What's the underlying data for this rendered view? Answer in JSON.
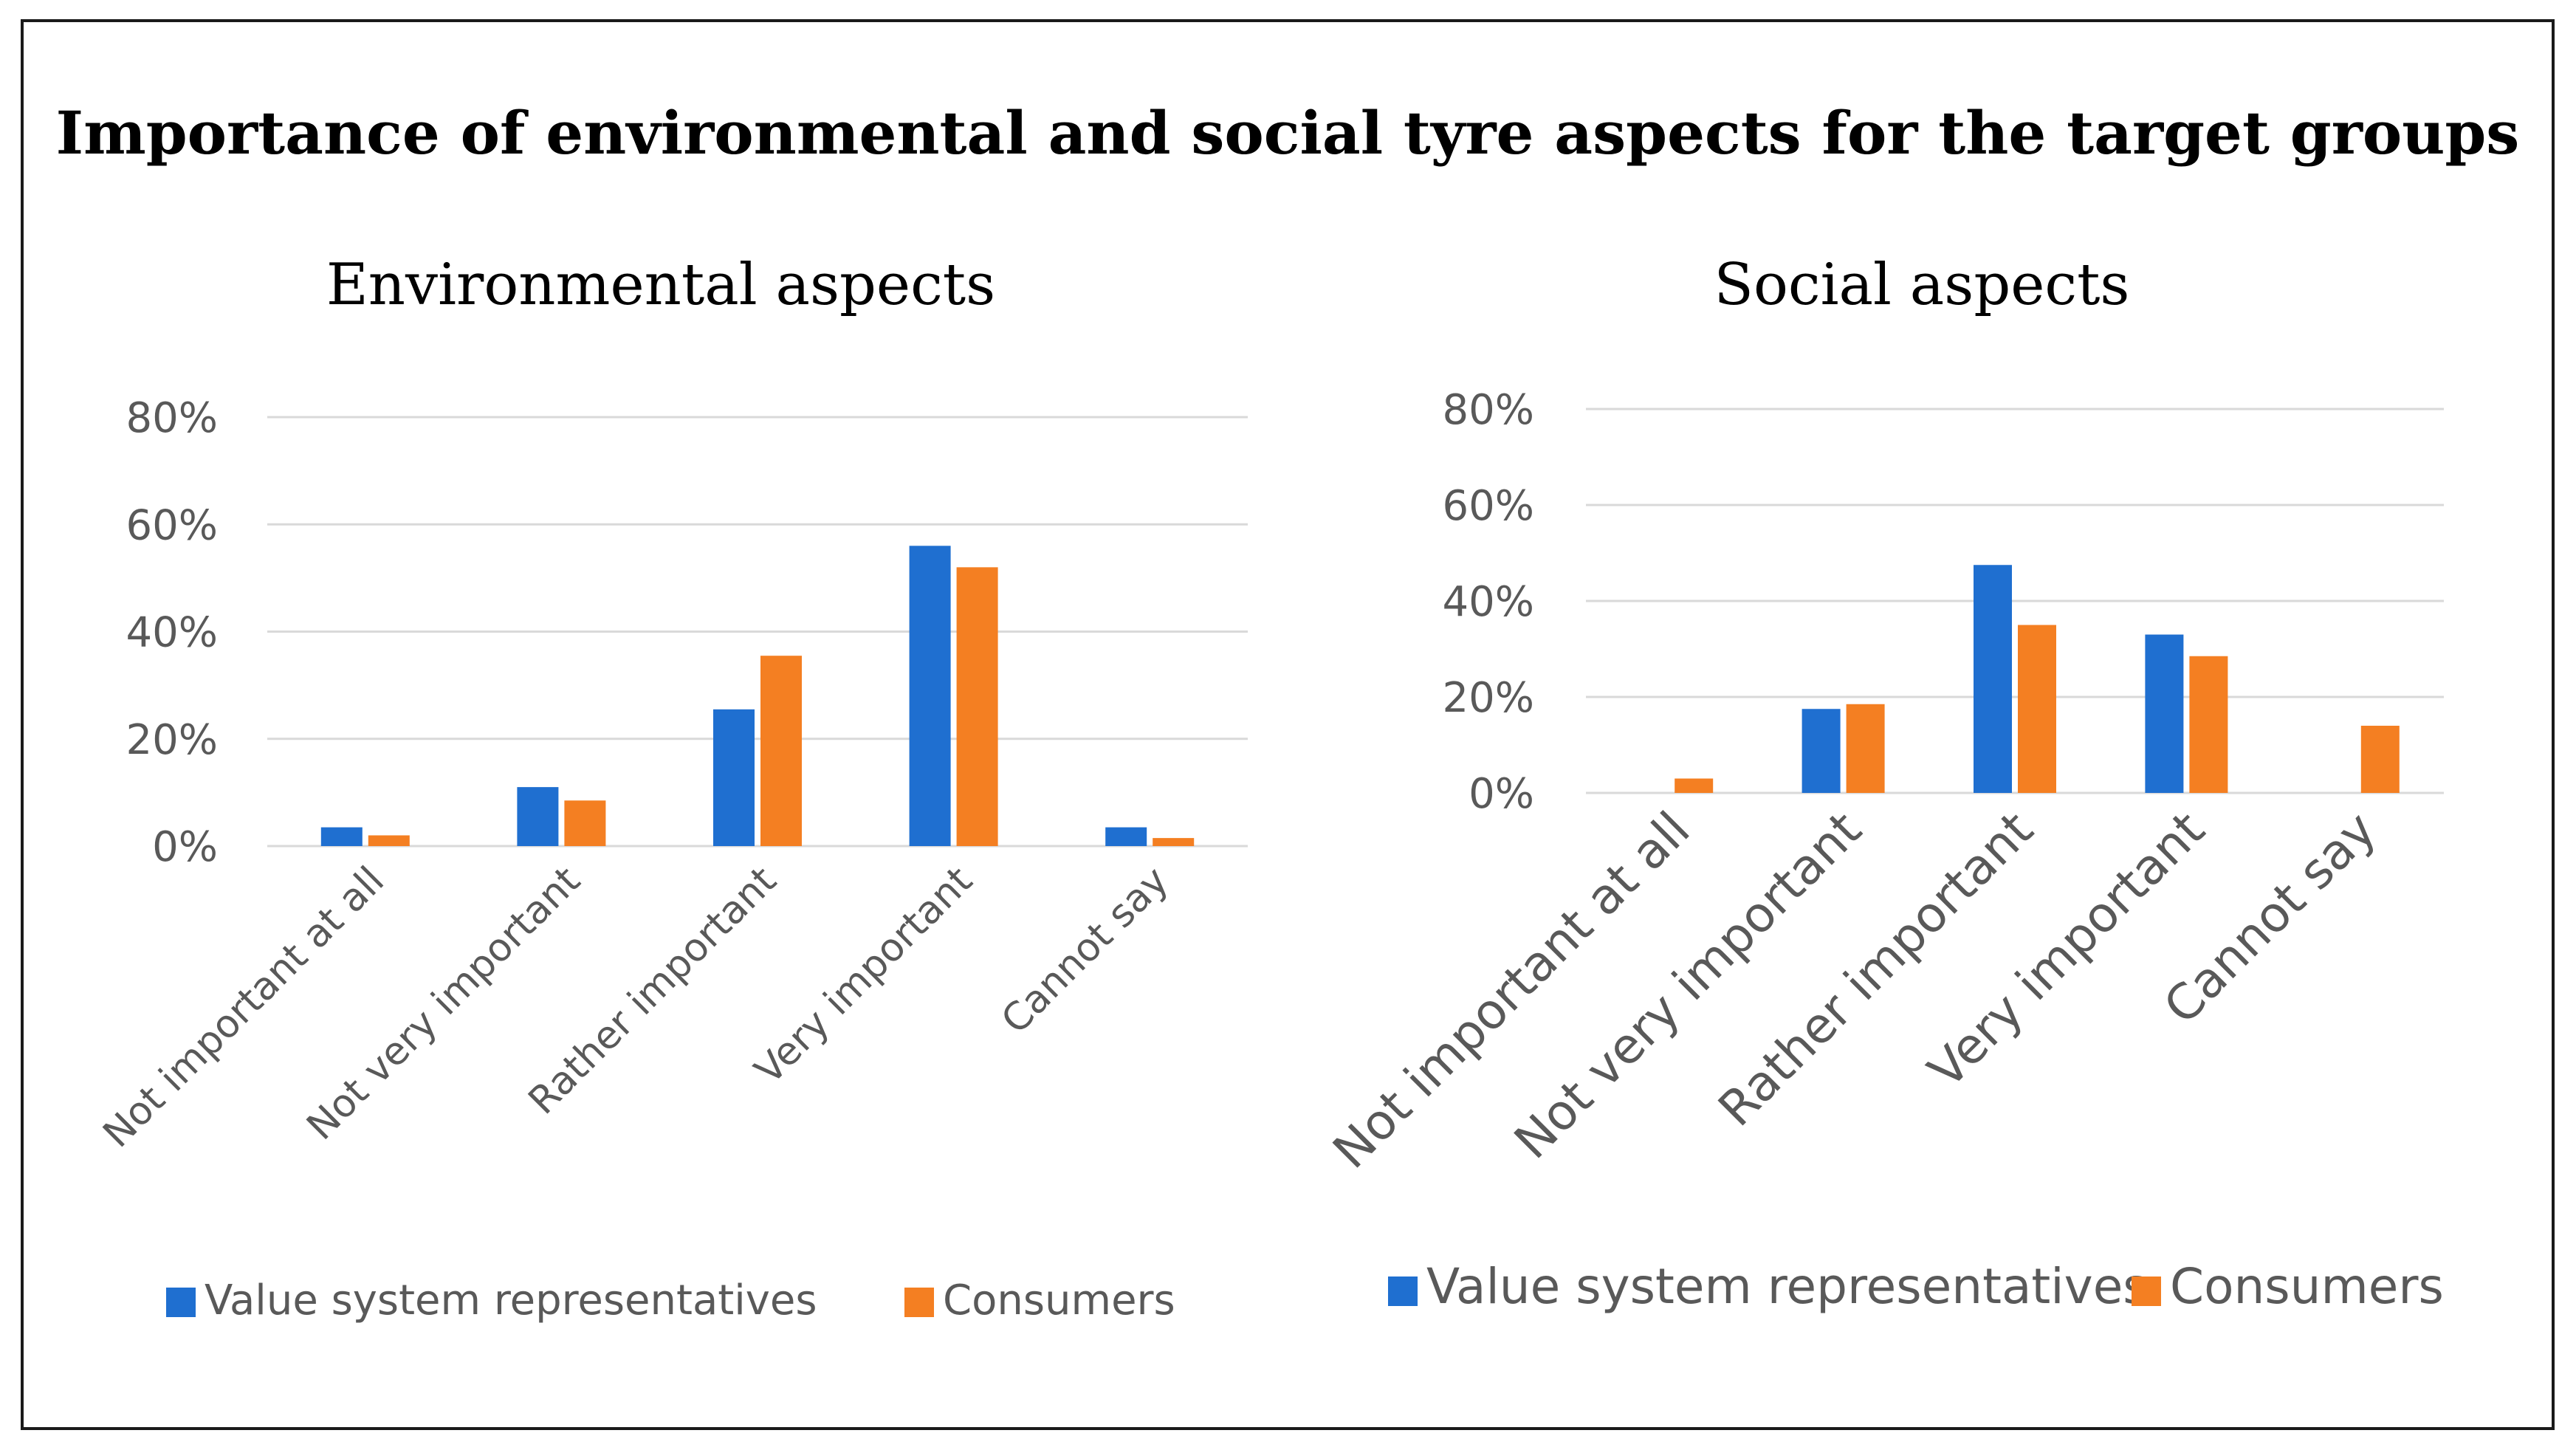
{
  "figure": {
    "title": "Importance of environmental and social tyre aspects for the target groups"
  },
  "colors": {
    "series_1": "#1f6fd0",
    "series_2": "#f47f22",
    "gridline": "#d9d9d9",
    "tick_text": "#595959",
    "frame": "#1a1a1a"
  },
  "chart_data": [
    {
      "type": "bar",
      "title": "Environmental aspects",
      "categories": [
        "Not important at all",
        "Not very important",
        "Rather important",
        "Very important",
        "Cannot say"
      ],
      "series": [
        {
          "name": "Value system representatives",
          "values": [
            3.5,
            11,
            25.5,
            56,
            3.5
          ]
        },
        {
          "name": "Consumers",
          "values": [
            2,
            8.5,
            35.5,
            52,
            1.5
          ]
        }
      ],
      "yticks": [
        "0%",
        "20%",
        "40%",
        "60%",
        "80%"
      ],
      "ylim": [
        0,
        80
      ],
      "xlabel": "",
      "ylabel": "",
      "legend": "bottom"
    },
    {
      "type": "bar",
      "title": "Social aspects",
      "categories": [
        "Not important at all",
        "Not very important",
        "Rather important",
        "Very important",
        "Cannot say"
      ],
      "series": [
        {
          "name": "Value system representatives",
          "values": [
            0,
            17.5,
            47.5,
            33,
            0
          ]
        },
        {
          "name": "Consumers",
          "values": [
            3,
            18.5,
            35,
            28.5,
            14
          ]
        }
      ],
      "yticks": [
        "0%",
        "20%",
        "40%",
        "60%",
        "80%"
      ],
      "ylim": [
        0,
        80
      ],
      "xlabel": "",
      "ylabel": "",
      "legend": "bottom"
    }
  ]
}
